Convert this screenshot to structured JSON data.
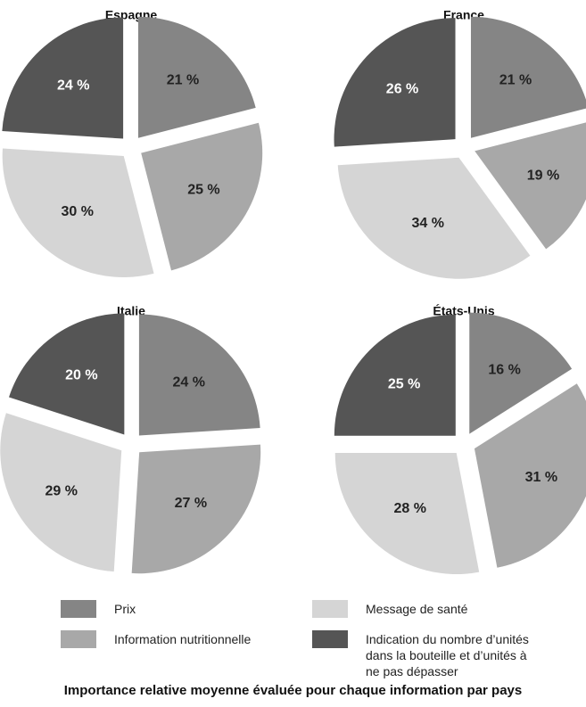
{
  "chart_data": [
    {
      "type": "pie",
      "title": "Espagne",
      "values": [
        21,
        25,
        30,
        24
      ],
      "value_labels": [
        "21 %",
        "25 %",
        "30 %",
        "24 %"
      ]
    },
    {
      "type": "pie",
      "title": "France",
      "values": [
        21,
        19,
        34,
        26
      ],
      "value_labels": [
        "21 %",
        "19 %",
        "34 %",
        "26 %"
      ]
    },
    {
      "type": "pie",
      "title": "Italie",
      "values": [
        24,
        27,
        29,
        20
      ],
      "value_labels": [
        "24 %",
        "27 %",
        "29 %",
        "20 %"
      ]
    },
    {
      "type": "pie",
      "title": "États-Unis",
      "values": [
        16,
        31,
        28,
        25
      ],
      "value_labels": [
        "16 %",
        "31 %",
        "28 %",
        "25 %"
      ]
    }
  ],
  "legend": {
    "categories": [
      "Prix",
      "Information nutritionnelle",
      "Message de santé",
      "Indication du nombre d’unités dans la bouteille et d’unités à ne pas dépasser"
    ],
    "colors": [
      "#858585",
      "#a8a8a8",
      "#d5d5d5",
      "#555555"
    ]
  },
  "caption": "Importance relative moyenne évaluée pour chaque information par pays"
}
